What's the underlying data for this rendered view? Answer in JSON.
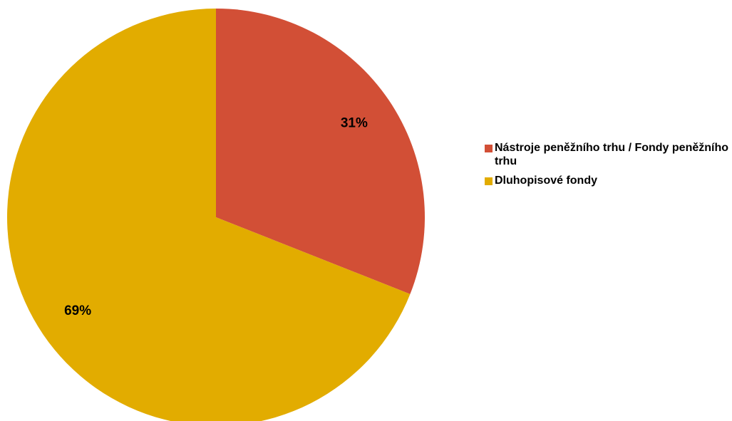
{
  "chart_data": {
    "type": "pie",
    "categories": [
      "Nástroje peněžního trhu / Fondy peněžního trhu",
      "Dluhopisové fondy"
    ],
    "values": [
      31,
      69
    ],
    "value_labels": [
      "31%",
      "69%"
    ],
    "colors": [
      "#d24f36",
      "#e2ac00"
    ],
    "legend": "right"
  }
}
